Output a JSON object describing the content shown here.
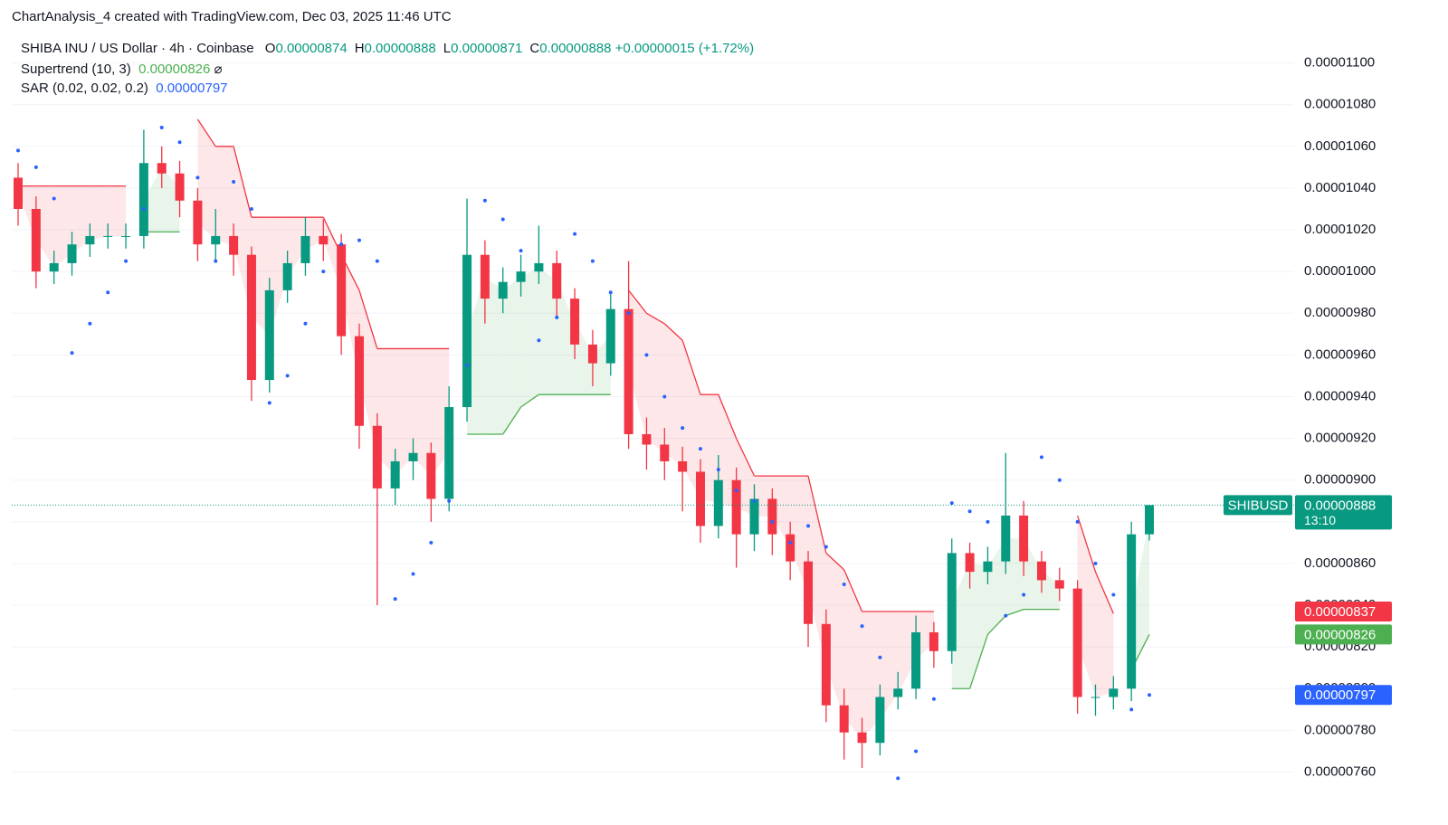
{
  "header": {
    "title": "ChartAnalysis_4 created with TradingView.com, Dec 03, 2025 11:46 UTC",
    "symbol": "SHIBA INU / US Dollar · 4h · Coinbase",
    "ohlc": [
      {
        "key": "O",
        "label": "0.00000874"
      },
      {
        "key": "H",
        "label": "0.00000888"
      },
      {
        "key": "L",
        "label": "0.00000871"
      },
      {
        "key": "C",
        "label": "0.00000888"
      }
    ],
    "change": "+0.00000015 (+1.72%)"
  },
  "chart_data": {
    "type": "candlestick",
    "x": [
      null,
      null,
      null,
      null,
      null,
      null,
      null,
      null,
      null,
      null,
      null,
      null,
      null,
      null,
      null,
      null,
      null,
      null,
      null,
      null,
      null,
      null,
      null,
      null,
      null,
      null,
      null,
      null,
      null,
      null,
      null,
      null,
      null,
      null,
      null,
      null,
      null,
      null,
      null,
      null,
      null,
      null,
      null,
      null,
      null,
      null,
      null,
      null,
      null,
      null,
      null,
      null,
      null,
      null,
      null,
      null,
      null,
      null,
      null,
      null,
      null,
      null,
      null,
      null
    ],
    "series": [
      {
        "name": "SHIBUSD",
        "up_color": "#089981",
        "down_color": "#f23645",
        "open": [
          1.045e-05,
          1.03e-05,
          1e-05,
          1.004e-05,
          1.013e-05,
          1.017e-05,
          1.017e-05,
          1.017e-05,
          1.052e-05,
          1.047e-05,
          1.034e-05,
          1.013e-05,
          1.017e-05,
          1.008e-05,
          9.48e-06,
          9.91e-06,
          1.004e-05,
          1.017e-05,
          1.013e-05,
          9.69e-06,
          9.26e-06,
          8.96e-06,
          9.09e-06,
          9.13e-06,
          8.91e-06,
          9.35e-06,
          1.008e-05,
          9.87e-06,
          9.95e-06,
          1e-05,
          1.004e-05,
          9.87e-06,
          9.65e-06,
          9.56e-06,
          9.82e-06,
          9.22e-06,
          9.17e-06,
          9.09e-06,
          9.04e-06,
          8.78e-06,
          9e-06,
          8.74e-06,
          8.91e-06,
          8.74e-06,
          8.61e-06,
          8.31e-06,
          7.92e-06,
          7.79e-06,
          7.74e-06,
          7.96e-06,
          8e-06,
          8.27e-06,
          8.18e-06,
          8.65e-06,
          8.56e-06,
          8.61e-06,
          8.83e-06,
          8.61e-06,
          8.52e-06,
          8.48e-06,
          7.96e-06,
          7.96e-06,
          8e-06,
          8.74e-06
        ],
        "high": [
          1.052e-05,
          1.036e-05,
          1.01e-05,
          1.019e-05,
          1.023e-05,
          1.023e-05,
          1.023e-05,
          1.068e-05,
          1.06e-05,
          1.053e-05,
          1.04e-05,
          1.03e-05,
          1.023e-05,
          1.012e-05,
          9.97e-06,
          1.01e-05,
          1.026e-05,
          1.025e-05,
          1.018e-05,
          9.75e-06,
          9.32e-06,
          9.15e-06,
          9.2e-06,
          9.18e-06,
          9.45e-06,
          1.035e-05,
          1.015e-05,
          1.002e-05,
          1.008e-05,
          1.022e-05,
          1.01e-05,
          9.92e-06,
          9.72e-06,
          9.9e-06,
          1.005e-05,
          9.3e-06,
          9.25e-06,
          9.16e-06,
          9.1e-06,
          9.12e-06,
          9.06e-06,
          8.98e-06,
          8.96e-06,
          8.8e-06,
          8.66e-06,
          8.38e-06,
          8e-06,
          7.86e-06,
          8.02e-06,
          8.08e-06,
          8.35e-06,
          8.32e-06,
          8.72e-06,
          8.7e-06,
          8.68e-06,
          9.13e-06,
          8.9e-06,
          8.66e-06,
          8.58e-06,
          8.52e-06,
          8.02e-06,
          8.06e-06,
          8.8e-06,
          8.88e-06
        ],
        "low": [
          1.022e-05,
          9.92e-06,
          9.94e-06,
          9.98e-06,
          1.007e-05,
          1.011e-05,
          1.011e-05,
          1.011e-05,
          1.04e-05,
          1.026e-05,
          1.005e-05,
          1.005e-05,
          9.98e-06,
          9.38e-06,
          9.42e-06,
          9.85e-06,
          9.98e-06,
          1.005e-05,
          9.6e-06,
          9.15e-06,
          8.4e-06,
          8.88e-06,
          9e-06,
          8.8e-06,
          8.85e-06,
          9.28e-06,
          9.75e-06,
          9.8e-06,
          9.88e-06,
          9.94e-06,
          9.78e-06,
          9.58e-06,
          9.45e-06,
          9.5e-06,
          9.15e-06,
          9.05e-06,
          9e-06,
          8.85e-06,
          8.7e-06,
          8.72e-06,
          8.58e-06,
          8.66e-06,
          8.64e-06,
          8.52e-06,
          8.2e-06,
          7.84e-06,
          7.66e-06,
          7.62e-06,
          7.68e-06,
          7.9e-06,
          7.95e-06,
          8.1e-06,
          8.12e-06,
          8.48e-06,
          8.5e-06,
          8.55e-06,
          8.54e-06,
          8.46e-06,
          8.42e-06,
          7.88e-06,
          7.87e-06,
          7.9e-06,
          7.94e-06,
          8.71e-06
        ],
        "close": [
          1.03e-05,
          1e-05,
          1.004e-05,
          1.013e-05,
          1.017e-05,
          1.017e-05,
          1.017e-05,
          1.052e-05,
          1.047e-05,
          1.034e-05,
          1.013e-05,
          1.017e-05,
          1.008e-05,
          9.48e-06,
          9.91e-06,
          1.004e-05,
          1.017e-05,
          1.013e-05,
          9.69e-06,
          9.26e-06,
          8.96e-06,
          9.09e-06,
          9.13e-06,
          8.91e-06,
          9.35e-06,
          1.008e-05,
          9.87e-06,
          9.95e-06,
          1e-05,
          1.004e-05,
          9.87e-06,
          9.65e-06,
          9.56e-06,
          9.82e-06,
          9.22e-06,
          9.17e-06,
          9.09e-06,
          9.04e-06,
          8.78e-06,
          9e-06,
          8.74e-06,
          8.91e-06,
          8.74e-06,
          8.61e-06,
          8.31e-06,
          7.92e-06,
          7.79e-06,
          7.74e-06,
          7.96e-06,
          8e-06,
          8.27e-06,
          8.18e-06,
          8.65e-06,
          8.56e-06,
          8.61e-06,
          8.83e-06,
          8.61e-06,
          8.52e-06,
          8.48e-06,
          7.96e-06,
          7.96e-06,
          8e-06,
          8.74e-06,
          8.88e-06
        ]
      }
    ],
    "supertrend": {
      "name": "Supertrend (10, 3)",
      "up_color": "#4caf50",
      "down_color": "#f23645",
      "values": [
        1.041e-05,
        1.041e-05,
        1.041e-05,
        1.041e-05,
        1.041e-05,
        1.041e-05,
        1.041e-05,
        1.019e-05,
        1.019e-05,
        1.019e-05,
        1.073e-05,
        1.06e-05,
        1.06e-05,
        1.026e-05,
        1.026e-05,
        1.026e-05,
        1.026e-05,
        1.026e-05,
        1.008e-05,
        9.91e-06,
        9.63e-06,
        9.63e-06,
        9.63e-06,
        9.63e-06,
        9.63e-06,
        9.22e-06,
        9.22e-06,
        9.22e-06,
        9.35e-06,
        9.41e-06,
        9.41e-06,
        9.41e-06,
        9.41e-06,
        9.41e-06,
        9.91e-06,
        9.8e-06,
        9.75e-06,
        9.67e-06,
        9.41e-06,
        9.41e-06,
        9.2e-06,
        9.02e-06,
        9.02e-06,
        9.02e-06,
        9.02e-06,
        8.65e-06,
        8.57e-06,
        8.37e-06,
        8.37e-06,
        8.37e-06,
        8.37e-06,
        8.37e-06,
        8e-06,
        8e-06,
        8.26e-06,
        8.35e-06,
        8.38e-06,
        8.38e-06,
        8.38e-06,
        8.83e-06,
        8.56e-06,
        8.36e-06,
        8.09e-06,
        8.26e-06
      ]
    },
    "sar": {
      "name": "SAR (0.02, 0.02, 0.2)",
      "color": "#2962ff",
      "values": [
        1.058e-05,
        1.05e-05,
        1.035e-05,
        9.61e-06,
        9.75e-06,
        9.9e-06,
        1.005e-05,
        1.03e-05,
        1.069e-05,
        1.062e-05,
        1.045e-05,
        1.005e-05,
        1.043e-05,
        1.03e-05,
        9.37e-06,
        9.5e-06,
        9.75e-06,
        1e-05,
        1.013e-05,
        1.015e-05,
        1.005e-05,
        8.43e-06,
        8.55e-06,
        8.7e-06,
        8.9e-06,
        9.55e-06,
        1.034e-05,
        1.025e-05,
        1.01e-05,
        9.67e-06,
        9.78e-06,
        1.018e-05,
        1.005e-05,
        9.9e-06,
        9.8e-06,
        9.6e-06,
        9.4e-06,
        9.25e-06,
        9.15e-06,
        9.05e-06,
        8.95e-06,
        8.9e-06,
        8.8e-06,
        8.7e-06,
        8.78e-06,
        8.68e-06,
        8.5e-06,
        8.3e-06,
        8.15e-06,
        7.57e-06,
        7.7e-06,
        7.95e-06,
        8.89e-06,
        8.85e-06,
        8.8e-06,
        8.35e-06,
        8.45e-06,
        9.11e-06,
        9e-06,
        8.8e-06,
        8.6e-06,
        8.45e-06,
        7.9e-06,
        7.97e-06
      ]
    },
    "ylim": [
      7.42e-06,
      1.115e-05
    ],
    "yticks": [
      {
        "value": 7.6e-06,
        "label": "0.00000760"
      },
      {
        "value": 7.8e-06,
        "label": "0.00000780"
      },
      {
        "value": 8e-06,
        "label": "0.00000800"
      },
      {
        "value": 8.2e-06,
        "label": "0.00000820"
      },
      {
        "value": 8.4e-06,
        "label": "0.00000840"
      },
      {
        "value": 8.6e-06,
        "label": "0.00000860"
      },
      {
        "value": 8.8e-06,
        "label": "0.00000880"
      },
      {
        "value": 9e-06,
        "label": "0.00000900"
      },
      {
        "value": 9.2e-06,
        "label": "0.00000920"
      },
      {
        "value": 9.4e-06,
        "label": "0.00000940"
      },
      {
        "value": 9.6e-06,
        "label": "0.00000960"
      },
      {
        "value": 9.8e-06,
        "label": "0.00000980"
      },
      {
        "value": 1e-05,
        "label": "0.00001000"
      },
      {
        "value": 1.02e-05,
        "label": "0.00001020"
      },
      {
        "value": 1.04e-05,
        "label": "0.00001040"
      },
      {
        "value": 1.06e-05,
        "label": "0.00001060"
      },
      {
        "value": 1.08e-05,
        "label": "0.00001080"
      },
      {
        "value": 1.1e-05,
        "label": "0.00001100"
      }
    ],
    "grid": true,
    "price_labels": [
      {
        "name": "SHIBUSD",
        "value": 8.88e-06,
        "label": "0.00000888",
        "countdown": "13:10",
        "color": "#089981"
      },
      {
        "value": 8.37e-06,
        "label": "0.00000837",
        "color": "#f23645"
      },
      {
        "value": 8.26e-06,
        "label": "0.00000826",
        "color": "#4caf50"
      },
      {
        "value": 7.97e-06,
        "label": "0.00000797",
        "color": "#2962ff"
      }
    ]
  }
}
